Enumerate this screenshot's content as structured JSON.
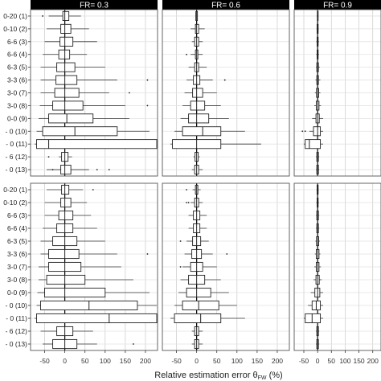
{
  "chart_data": {
    "type": "box",
    "xlabel": "Relative estimation error θ",
    "xlabel_sub": "FW",
    "xlabel_unit": "(%)",
    "xticks": [
      -50,
      0,
      50,
      100,
      150,
      200
    ],
    "xlim": [
      -85,
      230
    ],
    "panel_titles": [
      "FR= 0.3",
      "FR= 0.6",
      "FR= 0.9"
    ],
    "row_labels": [
      "0-20 (1)",
      "0-10 (2)",
      "6-6 (3)",
      "6-6 (4)",
      "6-3 (5)",
      "3-3 (6)",
      "3-0 (7)",
      "3-0 (8)",
      "0-0 (9)",
      "- 0 (10)",
      "- 0 (11)",
      "- 6 (12)",
      "- 0 (13)"
    ],
    "boxes": [
      [
        [
          {
            "w1": -40,
            "q1": -5,
            "med": 0,
            "q3": 10,
            "w2": 40,
            "out": [
              -55
            ]
          },
          {
            "w1": -45,
            "q1": -10,
            "med": 0,
            "q3": 15,
            "w2": 60,
            "out": []
          },
          {
            "w1": -50,
            "q1": -12,
            "med": 0,
            "q3": 20,
            "w2": 80,
            "out": []
          },
          {
            "w1": -55,
            "q1": -15,
            "med": 0,
            "q3": 12,
            "w2": 55,
            "out": []
          },
          {
            "w1": -60,
            "q1": -20,
            "med": 0,
            "q3": 25,
            "w2": 100,
            "out": []
          },
          {
            "w1": -60,
            "q1": -22,
            "med": 0,
            "q3": 30,
            "w2": 130,
            "out": [
              205
            ]
          },
          {
            "w1": -60,
            "q1": -25,
            "med": 0,
            "q3": 35,
            "w2": 110,
            "out": [
              160
            ]
          },
          {
            "w1": -62,
            "q1": -30,
            "med": 0,
            "q3": 45,
            "w2": 150,
            "out": [
              205
            ]
          },
          {
            "w1": -65,
            "q1": -40,
            "med": 5,
            "q3": 70,
            "w2": 160,
            "out": []
          },
          {
            "w1": -70,
            "q1": -55,
            "med": 25,
            "q3": 130,
            "w2": 210,
            "out": []
          },
          {
            "w1": -75,
            "q1": -70,
            "med": -40,
            "q3": 230,
            "w2": 230,
            "out": []
          },
          {
            "w1": -15,
            "q1": -8,
            "med": 0,
            "q3": 8,
            "w2": 18,
            "out": [
              -40
            ]
          },
          {
            "w1": -45,
            "q1": -10,
            "med": 0,
            "q3": 15,
            "w2": 60,
            "out": [
              -30,
              80,
              110
            ]
          }
        ],
        [
          {
            "w1": -3,
            "q1": -2,
            "med": 0,
            "q3": 2,
            "w2": 3,
            "out": []
          },
          {
            "w1": -15,
            "q1": -3,
            "med": 0,
            "q3": 5,
            "w2": 20,
            "out": []
          },
          {
            "w1": -12,
            "q1": -5,
            "med": 0,
            "q3": 5,
            "w2": 15,
            "out": []
          },
          {
            "w1": -15,
            "q1": -3,
            "med": 0,
            "q3": 3,
            "w2": 15,
            "out": [
              -25
            ]
          },
          {
            "w1": -20,
            "q1": -5,
            "med": 0,
            "q3": 5,
            "w2": 25,
            "out": []
          },
          {
            "w1": -25,
            "q1": -8,
            "med": 0,
            "q3": 8,
            "w2": 40,
            "out": [
              70
            ]
          },
          {
            "w1": -30,
            "q1": -10,
            "med": 0,
            "q3": 15,
            "w2": 50,
            "out": []
          },
          {
            "w1": -35,
            "q1": -15,
            "med": 0,
            "q3": 20,
            "w2": 60,
            "out": []
          },
          {
            "w1": -40,
            "q1": -20,
            "med": 0,
            "q3": 30,
            "w2": 80,
            "out": []
          },
          {
            "w1": -55,
            "q1": -35,
            "med": 15,
            "q3": 60,
            "w2": 120,
            "out": []
          },
          {
            "w1": -65,
            "q1": -60,
            "med": 0,
            "q3": 60,
            "w2": 160,
            "out": []
          },
          {
            "w1": -8,
            "q1": -4,
            "med": 0,
            "q3": 4,
            "w2": 8,
            "out": []
          },
          {
            "w1": -12,
            "q1": -5,
            "med": 0,
            "q3": 5,
            "w2": 15,
            "out": []
          }
        ],
        [
          {
            "w1": -3,
            "q1": -1,
            "med": 0,
            "q3": 1,
            "w2": 3,
            "out": []
          },
          {
            "w1": -4,
            "q1": -2,
            "med": 0,
            "q3": 2,
            "w2": 4,
            "out": []
          },
          {
            "w1": -5,
            "q1": -2,
            "med": 0,
            "q3": 2,
            "w2": 5,
            "out": []
          },
          {
            "w1": -5,
            "q1": -2,
            "med": 0,
            "q3": 2,
            "w2": 5,
            "out": []
          },
          {
            "w1": -6,
            "q1": -3,
            "med": 0,
            "q3": 3,
            "w2": 8,
            "out": []
          },
          {
            "w1": -8,
            "q1": -3,
            "med": 0,
            "q3": 3,
            "w2": 10,
            "out": []
          },
          {
            "w1": -10,
            "q1": -4,
            "med": 0,
            "q3": 4,
            "w2": 10,
            "out": []
          },
          {
            "w1": -12,
            "q1": -5,
            "med": 0,
            "q3": 5,
            "w2": 12,
            "out": []
          },
          {
            "w1": -20,
            "q1": -6,
            "med": 0,
            "q3": 6,
            "w2": 20,
            "out": []
          },
          {
            "w1": -30,
            "q1": -15,
            "med": 0,
            "q3": 10,
            "w2": 20,
            "out": [
              -55,
              -45
            ]
          },
          {
            "w1": -50,
            "q1": -45,
            "med": -30,
            "q3": 10,
            "w2": 20,
            "out": []
          },
          {
            "w1": -6,
            "q1": -3,
            "med": 0,
            "q3": 3,
            "w2": 6,
            "out": []
          },
          {
            "w1": -6,
            "q1": -3,
            "med": 0,
            "q3": 3,
            "w2": 6,
            "out": []
          }
        ]
      ],
      [
        [
          {
            "w1": -45,
            "q1": -8,
            "med": 0,
            "q3": 10,
            "w2": 45,
            "out": [
              70
            ]
          },
          {
            "w1": -50,
            "q1": -10,
            "med": 0,
            "q3": 15,
            "w2": 55,
            "out": []
          },
          {
            "w1": -50,
            "q1": -15,
            "med": 0,
            "q3": 20,
            "w2": 65,
            "out": []
          },
          {
            "w1": -55,
            "q1": -20,
            "med": 0,
            "q3": 20,
            "w2": 80,
            "out": []
          },
          {
            "w1": -60,
            "q1": -30,
            "med": 0,
            "q3": 30,
            "w2": 100,
            "out": []
          },
          {
            "w1": -60,
            "q1": -40,
            "med": 0,
            "q3": 35,
            "w2": 130,
            "out": [
              205
            ]
          },
          {
            "w1": -65,
            "q1": -40,
            "med": 0,
            "q3": 40,
            "w2": 140,
            "out": []
          },
          {
            "w1": -65,
            "q1": -45,
            "med": 0,
            "q3": 50,
            "w2": 170,
            "out": []
          },
          {
            "w1": -68,
            "q1": -50,
            "med": 0,
            "q3": 100,
            "w2": 210,
            "out": []
          },
          {
            "w1": -70,
            "q1": -60,
            "med": 60,
            "q3": 180,
            "w2": 230,
            "out": []
          },
          {
            "w1": -75,
            "q1": -70,
            "med": 110,
            "q3": 230,
            "w2": 230,
            "out": []
          },
          {
            "w1": -60,
            "q1": -20,
            "med": 0,
            "q3": 20,
            "w2": 70,
            "out": []
          },
          {
            "w1": -55,
            "q1": -30,
            "med": 0,
            "q3": 30,
            "w2": 80,
            "out": [
              170
            ]
          }
        ],
        [
          {
            "w1": -10,
            "q1": -3,
            "med": 0,
            "q3": 3,
            "w2": 10,
            "out": [
              -25
            ]
          },
          {
            "w1": -15,
            "q1": -5,
            "med": 0,
            "q3": 5,
            "w2": 15,
            "out": [
              -25,
              -20
            ]
          },
          {
            "w1": -20,
            "q1": -8,
            "med": 0,
            "q3": 8,
            "w2": 25,
            "out": []
          },
          {
            "w1": -20,
            "q1": -8,
            "med": 0,
            "q3": 8,
            "w2": 25,
            "out": []
          },
          {
            "w1": -25,
            "q1": -10,
            "med": 0,
            "q3": 10,
            "w2": 30,
            "out": [
              -40
            ]
          },
          {
            "w1": -30,
            "q1": -12,
            "med": 0,
            "q3": 12,
            "w2": 40,
            "out": [
              75
            ]
          },
          {
            "w1": -35,
            "q1": -15,
            "med": 0,
            "q3": 15,
            "w2": 50,
            "out": [
              -40
            ]
          },
          {
            "w1": -40,
            "q1": -20,
            "med": 0,
            "q3": 20,
            "w2": 60,
            "out": []
          },
          {
            "w1": -45,
            "q1": -25,
            "med": 0,
            "q3": 35,
            "w2": 80,
            "out": []
          },
          {
            "w1": -55,
            "q1": -35,
            "med": 5,
            "q3": 55,
            "w2": 100,
            "out": []
          },
          {
            "w1": -65,
            "q1": -55,
            "med": 10,
            "q3": 60,
            "w2": 120,
            "out": []
          },
          {
            "w1": -12,
            "q1": -5,
            "med": 0,
            "q3": 5,
            "w2": 15,
            "out": []
          },
          {
            "w1": -12,
            "q1": -5,
            "med": 0,
            "q3": 5,
            "w2": 15,
            "out": []
          }
        ],
        [
          {
            "w1": -4,
            "q1": -2,
            "med": 0,
            "q3": 2,
            "w2": 4,
            "out": []
          },
          {
            "w1": -5,
            "q1": -2,
            "med": 0,
            "q3": 2,
            "w2": 5,
            "out": []
          },
          {
            "w1": -6,
            "q1": -3,
            "med": 0,
            "q3": 3,
            "w2": 6,
            "out": []
          },
          {
            "w1": -6,
            "q1": -3,
            "med": 0,
            "q3": 3,
            "w2": 6,
            "out": []
          },
          {
            "w1": -8,
            "q1": -4,
            "med": 0,
            "q3": 4,
            "w2": 8,
            "out": []
          },
          {
            "w1": -10,
            "q1": -5,
            "med": 0,
            "q3": 5,
            "w2": 10,
            "out": []
          },
          {
            "w1": -12,
            "q1": -5,
            "med": 0,
            "q3": 5,
            "w2": 12,
            "out": []
          },
          {
            "w1": -15,
            "q1": -6,
            "med": 0,
            "q3": 6,
            "w2": 15,
            "out": []
          },
          {
            "w1": -25,
            "q1": -10,
            "med": 0,
            "q3": 8,
            "w2": 20,
            "out": []
          },
          {
            "w1": -35,
            "q1": -20,
            "med": -5,
            "q3": 10,
            "w2": 20,
            "out": []
          },
          {
            "w1": -50,
            "q1": -45,
            "med": -20,
            "q3": 10,
            "w2": 20,
            "out": []
          },
          {
            "w1": -6,
            "q1": -3,
            "med": 0,
            "q3": 3,
            "w2": 6,
            "out": []
          },
          {
            "w1": -6,
            "q1": -3,
            "med": 0,
            "q3": 3,
            "w2": 6,
            "out": []
          }
        ]
      ]
    ]
  }
}
